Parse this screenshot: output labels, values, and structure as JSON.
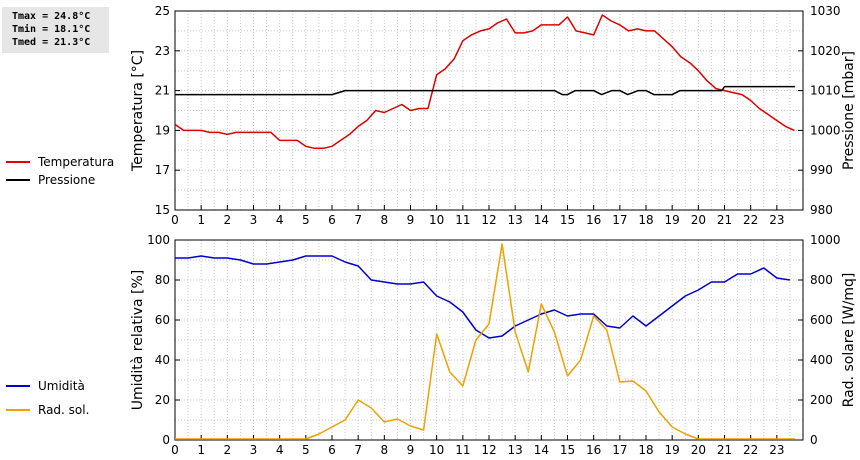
{
  "stats": {
    "tmax": "Tmax = 24.8°C",
    "tmin": "Tmin = 18.1°C",
    "tmed": "Tmed = 21.3°C"
  },
  "colors": {
    "red": "#dd0000",
    "black": "#000000",
    "blue": "#0000cc",
    "orange": "#f0a000",
    "grid": "#c8c8c8"
  },
  "chart_data": [
    {
      "type": "line",
      "xlim": [
        0,
        24
      ],
      "xticks": [
        "0",
        "1",
        "2",
        "3",
        "4",
        "5",
        "6",
        "7",
        "8",
        "9",
        "10",
        "11",
        "12",
        "13",
        "14",
        "15",
        "16",
        "17",
        "18",
        "19",
        "20",
        "21",
        "22",
        "23"
      ],
      "ylabel": "Temperatura [°C]",
      "ylim": [
        15,
        25
      ],
      "yticks": [
        "15",
        "17",
        "19",
        "21",
        "23",
        "25"
      ],
      "y2label": "Pressione [mbar]",
      "y2lim": [
        980,
        1030
      ],
      "y2ticks": [
        "980",
        "990",
        "1000",
        "1010",
        "1020",
        "1030"
      ],
      "legend": [
        "Temperatura",
        "Pressione"
      ],
      "series": [
        {
          "name": "Temperatura",
          "axis": "left",
          "color": "#dd0000",
          "x": [
            0,
            0.33,
            0.67,
            1,
            1.33,
            1.67,
            2,
            2.33,
            2.67,
            3,
            3.33,
            3.67,
            4,
            4.33,
            4.67,
            5,
            5.33,
            5.67,
            6,
            6.33,
            6.67,
            7,
            7.33,
            7.67,
            8,
            8.33,
            8.67,
            9,
            9.33,
            9.67,
            10,
            10.33,
            10.67,
            11,
            11.33,
            11.67,
            12,
            12.33,
            12.67,
            13,
            13.33,
            13.67,
            14,
            14.33,
            14.67,
            15,
            15.33,
            15.67,
            16,
            16.33,
            16.67,
            17,
            17.33,
            17.67,
            18,
            18.33,
            18.67,
            19,
            19.33,
            19.67,
            20,
            20.33,
            20.67,
            21,
            21.33,
            21.67,
            22,
            22.33,
            22.67,
            23,
            23.33,
            23.67
          ],
          "values": [
            19.3,
            19.0,
            19.0,
            19.0,
            18.9,
            18.9,
            18.8,
            18.9,
            18.9,
            18.9,
            18.9,
            18.9,
            18.5,
            18.5,
            18.5,
            18.2,
            18.1,
            18.1,
            18.2,
            18.5,
            18.8,
            19.2,
            19.5,
            20.0,
            19.9,
            20.1,
            20.3,
            20.0,
            20.1,
            20.1,
            21.8,
            22.1,
            22.6,
            23.5,
            23.8,
            24.0,
            24.1,
            24.4,
            24.6,
            23.9,
            23.9,
            24.0,
            24.3,
            24.3,
            24.3,
            24.7,
            24.0,
            23.9,
            23.8,
            24.8,
            24.5,
            24.3,
            24.0,
            24.1,
            24.0,
            24.0,
            23.6,
            23.2,
            22.7,
            22.4,
            22.0,
            21.5,
            21.1,
            21.0,
            20.9,
            20.8,
            20.5,
            20.1,
            19.8,
            19.5,
            19.2,
            19.0
          ]
        },
        {
          "name": "Pressione",
          "axis": "right",
          "color": "#000000",
          "x": [
            0,
            6.0,
            6.5,
            7,
            8,
            9,
            10,
            11,
            12,
            13,
            14,
            14.5,
            14.8,
            15,
            15.3,
            15.7,
            16,
            16.3,
            16.7,
            17,
            17.3,
            17.7,
            18,
            18.3,
            18.7,
            19,
            19.3,
            19.7,
            20,
            20.5,
            20.9,
            21,
            22,
            23,
            23.7
          ],
          "values": [
            1009,
            1009,
            1010,
            1010,
            1010,
            1010,
            1010,
            1010,
            1010,
            1010,
            1010,
            1010,
            1009,
            1009,
            1010,
            1010,
            1010,
            1009,
            1010,
            1010,
            1009,
            1010,
            1010,
            1009,
            1009,
            1009,
            1010,
            1010,
            1010,
            1010,
            1010,
            1011,
            1011,
            1011,
            1011
          ]
        }
      ]
    },
    {
      "type": "line",
      "xlim": [
        0,
        24
      ],
      "xticks": [
        "0",
        "1",
        "2",
        "3",
        "4",
        "5",
        "6",
        "7",
        "8",
        "9",
        "10",
        "11",
        "12",
        "13",
        "14",
        "15",
        "16",
        "17",
        "18",
        "19",
        "20",
        "21",
        "22",
        "23"
      ],
      "ylabel": "Umidità relativa [%]",
      "ylim": [
        0,
        100
      ],
      "yticks": [
        "0",
        "20",
        "40",
        "60",
        "80",
        "100"
      ],
      "y2label": "Rad. solare [W/mq]",
      "y2lim": [
        0,
        1000
      ],
      "y2ticks": [
        "0",
        "200",
        "400",
        "600",
        "800",
        "1000"
      ],
      "legend": [
        "Umidità",
        "Rad. sol."
      ],
      "series": [
        {
          "name": "Umidità",
          "axis": "left",
          "color": "#0000cc",
          "x": [
            0,
            0.5,
            1,
            1.5,
            2,
            2.5,
            3,
            3.5,
            4,
            4.5,
            5,
            5.5,
            6,
            6.5,
            7,
            7.5,
            8,
            8.5,
            9,
            9.5,
            10,
            10.5,
            11,
            11.5,
            12,
            12.5,
            13,
            13.5,
            14,
            14.5,
            15,
            15.5,
            16,
            16.5,
            17,
            17.5,
            18,
            18.5,
            19,
            19.5,
            20,
            20.5,
            21,
            21.5,
            22,
            22.5,
            23,
            23.5
          ],
          "values": [
            91,
            91,
            92,
            91,
            91,
            90,
            88,
            88,
            89,
            90,
            92,
            92,
            92,
            89,
            87,
            80,
            79,
            78,
            78,
            79,
            72,
            69,
            64,
            55,
            51,
            52,
            57,
            60,
            63,
            65,
            62,
            63,
            63,
            57,
            56,
            62,
            57,
            62,
            67,
            72,
            75,
            79,
            79,
            83,
            83,
            86,
            81,
            80
          ]
        },
        {
          "name": "Rad. sol.",
          "axis": "right",
          "color": "#f0a000",
          "x": [
            0,
            1,
            2,
            3,
            4,
            5,
            5.5,
            6,
            6.5,
            7,
            7.5,
            8,
            8.5,
            9,
            9.5,
            10,
            10.5,
            11,
            11.5,
            12,
            12.5,
            13,
            13.5,
            14,
            14.5,
            15,
            15.5,
            16,
            16.5,
            17,
            17.5,
            18,
            18.5,
            19,
            19.5,
            20,
            21,
            22,
            23,
            23.7
          ],
          "values": [
            5,
            5,
            5,
            5,
            5,
            5,
            30,
            65,
            100,
            200,
            160,
            90,
            105,
            70,
            50,
            530,
            340,
            270,
            500,
            580,
            980,
            540,
            340,
            680,
            540,
            320,
            400,
            620,
            550,
            290,
            295,
            245,
            140,
            65,
            30,
            5,
            5,
            5,
            5,
            5
          ]
        }
      ]
    }
  ]
}
